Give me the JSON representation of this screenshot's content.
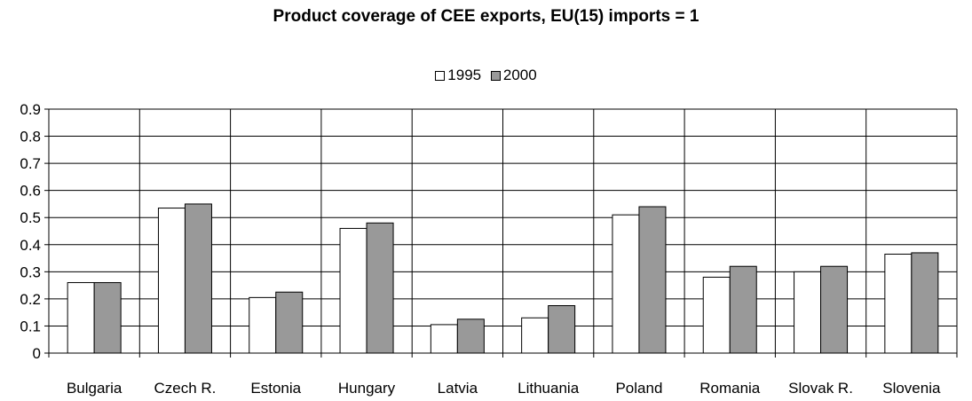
{
  "chart_data": {
    "type": "bar",
    "title": "Product coverage of CEE exports, EU(15) imports = 1",
    "categories": [
      "Bulgaria",
      "Czech R.",
      "Estonia",
      "Hungary",
      "Latvia",
      "Lithuania",
      "Poland",
      "Romania",
      "Slovak R.",
      "Slovenia"
    ],
    "series": [
      {
        "name": "1995",
        "color": "#ffffff",
        "values": [
          0.26,
          0.535,
          0.205,
          0.46,
          0.105,
          0.13,
          0.51,
          0.28,
          0.3,
          0.365
        ]
      },
      {
        "name": "2000",
        "color": "#999999",
        "values": [
          0.26,
          0.55,
          0.225,
          0.48,
          0.125,
          0.175,
          0.54,
          0.32,
          0.32,
          0.37
        ]
      }
    ],
    "ylim": [
      0,
      0.9
    ],
    "yticks": [
      "0",
      "0.1",
      "0.2",
      "0.3",
      "0.4",
      "0.5",
      "0.6",
      "0.7",
      "0.8",
      "0.9"
    ],
    "grid": true,
    "legend_position": "top-center"
  }
}
